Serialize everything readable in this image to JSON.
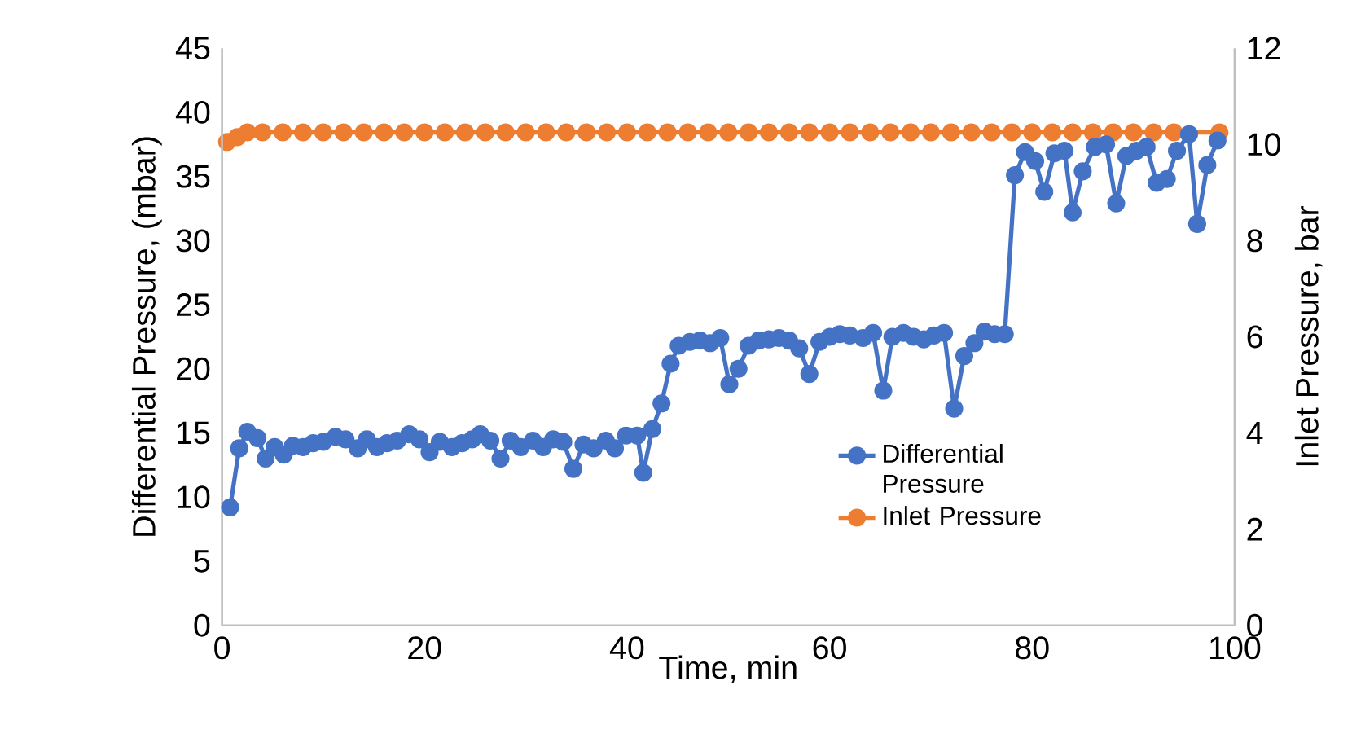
{
  "chart_data": {
    "type": "line",
    "xlabel": "Time, min",
    "ylabel": "Differential Pressure, (mbar)",
    "y2label": "Inlet Pressure, bar",
    "xlim": [
      0,
      100
    ],
    "xticks": [
      0,
      20,
      40,
      60,
      80,
      100
    ],
    "ylim": [
      0,
      45
    ],
    "yticks": [
      0,
      5,
      10,
      15,
      20,
      25,
      30,
      35,
      40,
      45
    ],
    "y2lim": [
      0,
      12
    ],
    "y2ticks": [
      0,
      2,
      4,
      6,
      8,
      10,
      12
    ],
    "marker": "circle",
    "legend": "right",
    "series": [
      {
        "name": "Differential Pressure",
        "color": "#4472c4",
        "x": [
          0.8,
          1.7,
          2.5,
          3.5,
          4.3,
          5.2,
          6.1,
          7,
          8,
          9,
          10,
          11.2,
          12.2,
          13.4,
          14.3,
          15.3,
          16.3,
          17.3,
          18.5,
          19.5,
          20.5,
          21.5,
          22.7,
          23.7,
          24.7,
          25.5,
          26.5,
          27.5,
          28.5,
          29.5,
          30.7,
          31.7,
          32.7,
          33.7,
          34.7,
          35.7,
          36.7,
          37.9,
          38.8,
          39.9,
          41,
          41.6,
          42.5,
          43.4,
          44.3,
          45.1,
          46.2,
          47.2,
          48.2,
          49.2,
          50.1,
          51,
          52,
          53,
          54,
          55,
          56,
          57,
          58,
          59,
          60,
          61,
          62,
          63.3,
          64.3,
          65.3,
          66.2,
          67.3,
          68.3,
          69.3,
          70.3,
          71.3,
          72.3,
          73.3,
          74.3,
          75.3,
          76.3,
          77.3,
          78.3,
          79.3,
          80.3,
          81.2,
          82.2,
          83.2,
          84,
          85,
          86.2,
          87.3,
          88.3,
          89.3,
          90.3,
          91.3,
          92.3,
          93.3,
          94.3,
          95.5,
          96.3,
          97.3,
          98.3
        ],
        "values": [
          9.2,
          13.8,
          15.1,
          14.6,
          13.0,
          13.9,
          13.3,
          14.0,
          13.9,
          14.2,
          14.3,
          14.7,
          14.5,
          13.8,
          14.5,
          13.9,
          14.2,
          14.4,
          14.9,
          14.5,
          13.5,
          14.3,
          13.9,
          14.2,
          14.5,
          14.9,
          14.4,
          13.0,
          14.4,
          13.9,
          14.4,
          13.9,
          14.5,
          14.3,
          12.2,
          14.1,
          13.8,
          14.4,
          13.8,
          14.8,
          14.8,
          11.9,
          15.3,
          17.3,
          20.4,
          21.8,
          22.1,
          22.2,
          22.0,
          22.4,
          18.8,
          20.0,
          21.8,
          22.2,
          22.3,
          22.4,
          22.2,
          21.6,
          19.6,
          22.1,
          22.5,
          22.7,
          22.6,
          22.4,
          22.8,
          18.3,
          22.5,
          22.8,
          22.5,
          22.3,
          22.6,
          22.8,
          16.9,
          21.0,
          22.0,
          22.9,
          22.7,
          22.7,
          35.1,
          36.9,
          36.2,
          33.8,
          36.8,
          37.0,
          32.2,
          35.4,
          37.3,
          37.5,
          32.9,
          36.6,
          37.0,
          37.3,
          34.5,
          34.8,
          37.0,
          38.3,
          31.3,
          35.9,
          37.8
        ]
      },
      {
        "name": "Inlet Pressure",
        "color": "#ed7d31",
        "axis": "y2",
        "x": [
          0.5,
          1.5,
          2.5,
          4,
          6,
          8,
          10,
          12,
          14,
          16,
          18,
          20,
          22,
          24,
          26,
          28,
          30,
          32,
          34,
          36,
          38,
          40,
          42,
          44,
          46,
          48,
          50,
          52,
          54,
          56,
          58,
          60,
          62,
          64,
          66,
          68,
          70,
          72,
          74,
          76,
          78,
          80,
          82,
          84,
          86,
          88,
          90,
          92,
          94,
          98.5
        ],
        "values": [
          10.05,
          10.15,
          10.25,
          10.25,
          10.25,
          10.25,
          10.25,
          10.25,
          10.25,
          10.25,
          10.25,
          10.25,
          10.25,
          10.25,
          10.25,
          10.25,
          10.25,
          10.25,
          10.25,
          10.25,
          10.25,
          10.25,
          10.25,
          10.25,
          10.25,
          10.25,
          10.25,
          10.25,
          10.25,
          10.25,
          10.25,
          10.25,
          10.25,
          10.25,
          10.25,
          10.25,
          10.25,
          10.25,
          10.25,
          10.25,
          10.25,
          10.25,
          10.25,
          10.25,
          10.25,
          10.25,
          10.25,
          10.25,
          10.25,
          10.25
        ]
      }
    ]
  }
}
